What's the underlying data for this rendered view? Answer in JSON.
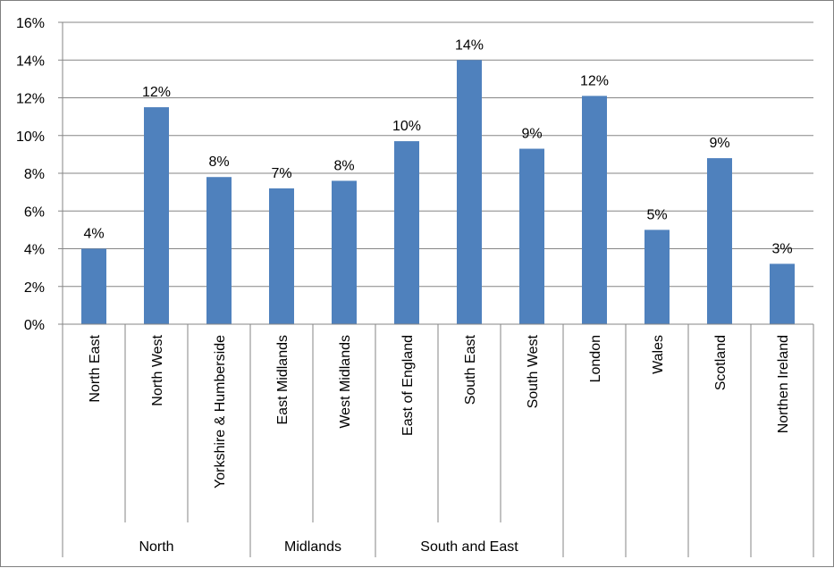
{
  "chart_data": {
    "type": "bar",
    "title": "",
    "xlabel": "",
    "ylabel": "",
    "ylim": [
      0,
      16
    ],
    "y_ticks": [
      "0%",
      "2%",
      "4%",
      "6%",
      "8%",
      "10%",
      "12%",
      "14%",
      "16%"
    ],
    "y_tick_values": [
      0,
      2,
      4,
      6,
      8,
      10,
      12,
      14,
      16
    ],
    "grid": true,
    "legend": "none",
    "bar_color": "#4f81bd",
    "categories": [
      "North East",
      "North West",
      "Yorkshire & Humberside",
      "East Midlands",
      "West Midlands",
      "East of England",
      "South East",
      "South West",
      "London",
      "Wales",
      "Scotland",
      "Northen Ireland"
    ],
    "values": [
      4.0,
      11.5,
      7.8,
      7.2,
      7.6,
      9.7,
      14.0,
      9.3,
      12.1,
      5.0,
      8.8,
      3.2
    ],
    "data_labels": [
      "4%",
      "12%",
      "8%",
      "7%",
      "8%",
      "10%",
      "14%",
      "9%",
      "12%",
      "5%",
      "9%",
      "3%"
    ],
    "groups": [
      {
        "name": "North",
        "start": 0,
        "end": 2
      },
      {
        "name": "Midlands",
        "start": 3,
        "end": 4
      },
      {
        "name": "South and East",
        "start": 5,
        "end": 7
      },
      {
        "name": "",
        "start": 8,
        "end": 8
      },
      {
        "name": "",
        "start": 9,
        "end": 9
      },
      {
        "name": "",
        "start": 10,
        "end": 10
      },
      {
        "name": "",
        "start": 11,
        "end": 11
      }
    ]
  }
}
